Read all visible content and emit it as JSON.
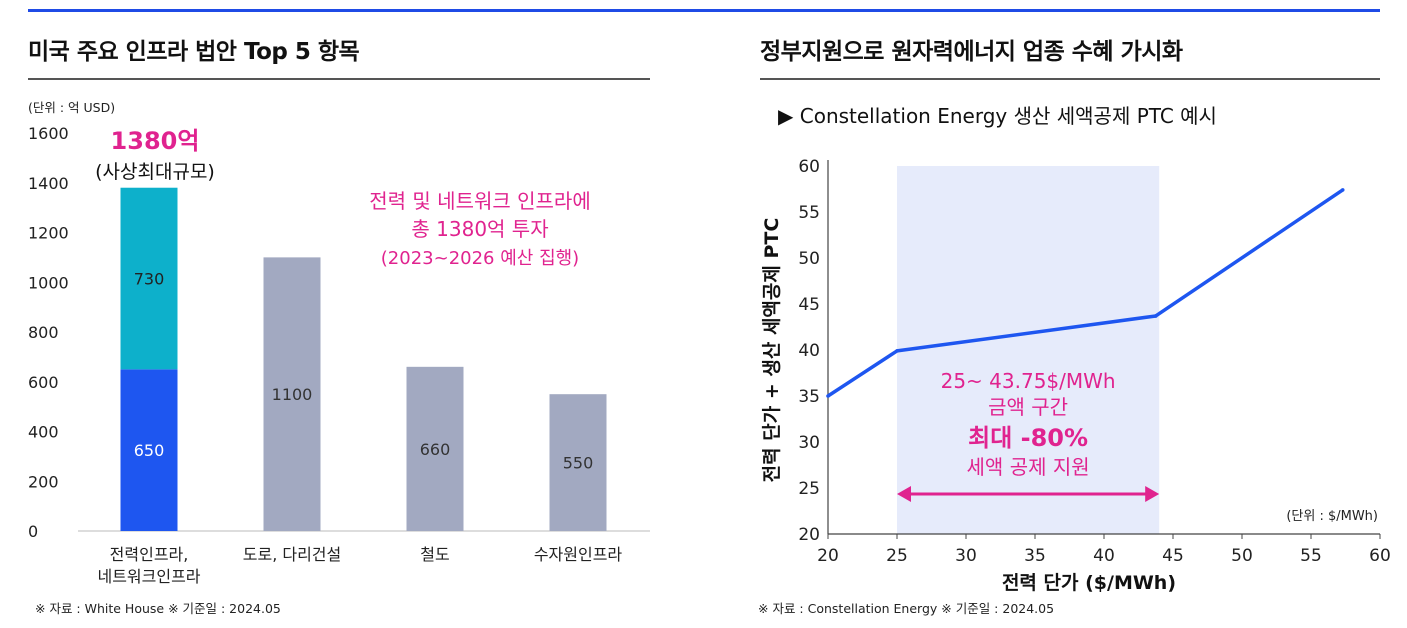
{
  "left_panel": {
    "title": "미국 주요 인프라 법안 Top 5 항목",
    "source": "※ 자료 : White House ※ 기준일 : 2024.05"
  },
  "right_panel": {
    "title": "정부지원으로 원자력에너지 업종 수혜 가시화",
    "subtitle": "▶ Constellation Energy 생산 세액공제 PTC 예시",
    "source": "※ 자료 : Constellation Energy ※ 기준일 : 2024.05"
  },
  "colors": {
    "accent_blue": "#1f4be6",
    "bar_blue": "#1e56f0",
    "bar_teal": "#0db0cb",
    "bar_gray": "#a2a9c1",
    "magenta": "#e0238f",
    "shade": "#e6ebfb",
    "line_blue": "#1e56f0"
  },
  "chart_data": [
    {
      "type": "bar",
      "stacked": true,
      "unit_label": "(단위 : 억 USD)",
      "categories": [
        [
          "전력인프라,",
          "네트워크인프라"
        ],
        [
          "도로, 다리건설"
        ],
        [
          "철도"
        ],
        [
          "수자원인프라"
        ]
      ],
      "series": [
        {
          "name": "전력인프라",
          "values": [
            650,
            1100,
            660,
            550
          ],
          "labels": [
            "650",
            "1100",
            "660",
            "550"
          ]
        },
        {
          "name": "네트워크인프라",
          "values": [
            730,
            0,
            0,
            0
          ],
          "labels": [
            "730",
            "",
            "",
            ""
          ]
        }
      ],
      "yticks": [
        0,
        200,
        400,
        600,
        800,
        1000,
        1200,
        1400,
        1600
      ],
      "ylim": [
        0,
        1600
      ],
      "annotations": {
        "total_value": "1380억",
        "total_note": "(사상최대규모)",
        "callout_line1": "전력 및 네트워크 인프라에",
        "callout_line2": "총 1380억 투자",
        "callout_line3": "(2023~2026 예산 집행)"
      }
    },
    {
      "type": "line",
      "x": [
        20,
        25,
        43.75,
        57.3
      ],
      "y": [
        35,
        39.9,
        43.7,
        57.4
      ],
      "xlabel": "전력 단가 ($/MWh)",
      "ylabel": "전력 단가 + 생산 세액공제 PTC",
      "xlim": [
        20,
        60
      ],
      "ylim": [
        20,
        60
      ],
      "xticks": [
        20,
        25,
        30,
        35,
        40,
        45,
        50,
        55,
        60
      ],
      "yticks": [
        20,
        25,
        30,
        35,
        40,
        45,
        50,
        55,
        60
      ],
      "unit_label": "(단위 : $/MWh)",
      "shaded_range": [
        25,
        44
      ],
      "annotations": {
        "range_line": "25~ 43.75$/MWh",
        "range_desc": "금액 구간",
        "max_label": "최대 -80%",
        "support_label": "세액 공제 지원"
      }
    }
  ]
}
